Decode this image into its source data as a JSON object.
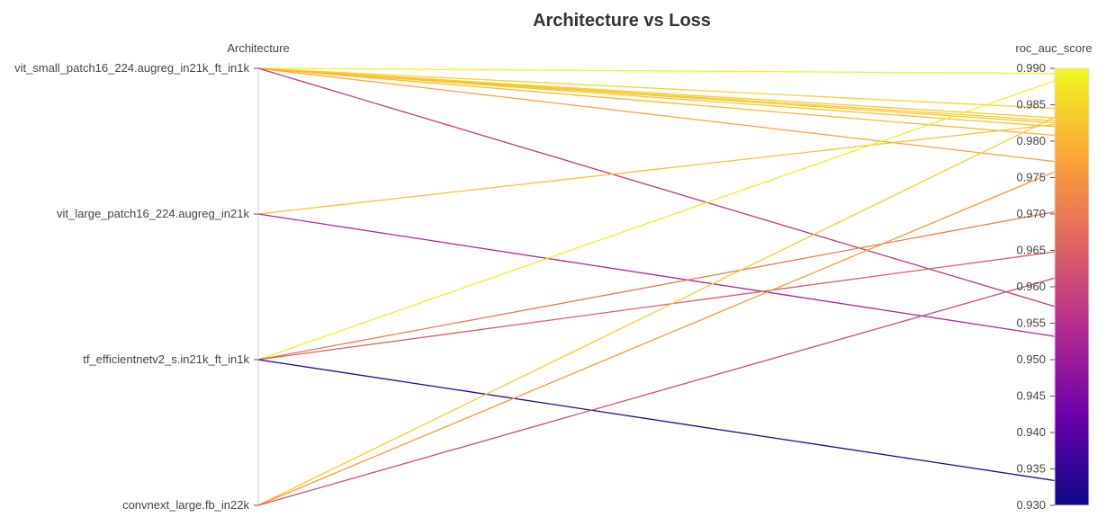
{
  "chart_data": {
    "type": "parallel_coordinates",
    "title": "Architecture vs Loss",
    "left_axis": {
      "label": "Architecture",
      "categories": [
        "vit_small_patch16_224.augreg_in21k_ft_in1k",
        "vit_large_patch16_224.augreg_in21k",
        "tf_efficientnetv2_s.in21k_ft_in1k",
        "convnext_large.fb_in22k"
      ]
    },
    "right_axis": {
      "label": "roc_auc_score",
      "ylim": [
        0.93,
        0.99
      ],
      "ticks": [
        "0.930",
        "0.935",
        "0.940",
        "0.945",
        "0.950",
        "0.955",
        "0.960",
        "0.965",
        "0.970",
        "0.975",
        "0.980",
        "0.985",
        "0.990"
      ]
    },
    "colorscale": [
      "#0d0887",
      "#6a00a8",
      "#b12a90",
      "#e16462",
      "#fca636",
      "#f0f921"
    ],
    "runs": [
      {
        "architecture": "vit_small_patch16_224.augreg_in21k_ft_in1k",
        "roc_auc_score": 0.9893
      },
      {
        "architecture": "vit_small_patch16_224.augreg_in21k_ft_in1k",
        "roc_auc_score": 0.9845
      },
      {
        "architecture": "vit_small_patch16_224.augreg_in21k_ft_in1k",
        "roc_auc_score": 0.9832
      },
      {
        "architecture": "vit_small_patch16_224.augreg_in21k_ft_in1k",
        "roc_auc_score": 0.9828
      },
      {
        "architecture": "vit_small_patch16_224.augreg_in21k_ft_in1k",
        "roc_auc_score": 0.9825
      },
      {
        "architecture": "vit_small_patch16_224.augreg_in21k_ft_in1k",
        "roc_auc_score": 0.982
      },
      {
        "architecture": "vit_small_patch16_224.augreg_in21k_ft_in1k",
        "roc_auc_score": 0.9808
      },
      {
        "architecture": "vit_small_patch16_224.augreg_in21k_ft_in1k",
        "roc_auc_score": 0.9772
      },
      {
        "architecture": "vit_small_patch16_224.augreg_in21k_ft_in1k",
        "roc_auc_score": 0.9573
      },
      {
        "architecture": "vit_large_patch16_224.augreg_in21k",
        "roc_auc_score": 0.9823
      },
      {
        "architecture": "vit_large_patch16_224.augreg_in21k",
        "roc_auc_score": 0.9532
      },
      {
        "architecture": "tf_efficientnetv2_s.in21k_ft_in1k",
        "roc_auc_score": 0.9883
      },
      {
        "architecture": "tf_efficientnetv2_s.in21k_ft_in1k",
        "roc_auc_score": 0.9703
      },
      {
        "architecture": "tf_efficientnetv2_s.in21k_ft_in1k",
        "roc_auc_score": 0.9648
      },
      {
        "architecture": "tf_efficientnetv2_s.in21k_ft_in1k",
        "roc_auc_score": 0.9334
      },
      {
        "architecture": "convnext_large.fb_in22k",
        "roc_auc_score": 0.9833
      },
      {
        "architecture": "convnext_large.fb_in22k",
        "roc_auc_score": 0.9758
      },
      {
        "architecture": "convnext_large.fb_in22k",
        "roc_auc_score": 0.9612
      }
    ]
  }
}
